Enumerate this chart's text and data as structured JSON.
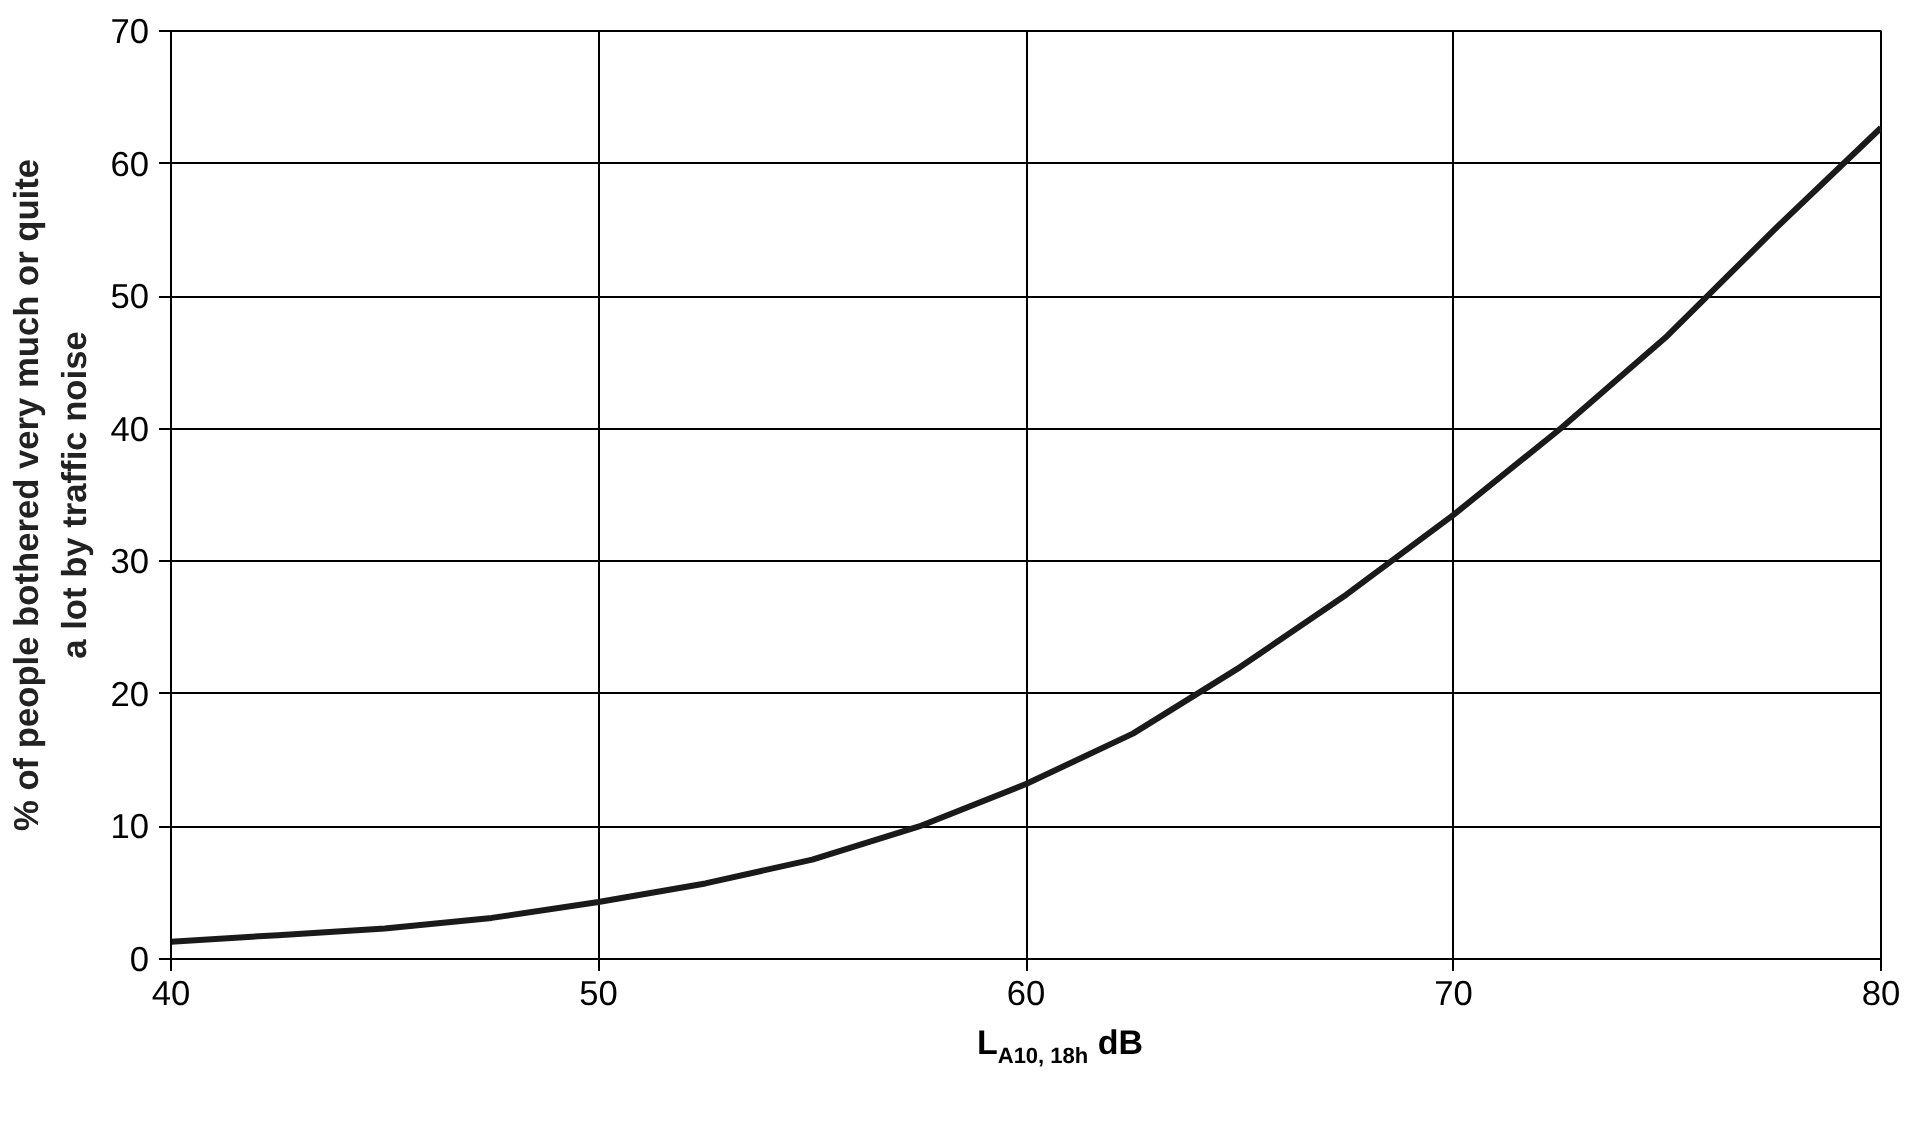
{
  "chart_data": {
    "type": "line",
    "xlabel": "L$_{A10, 18h}$ dB",
    "ylabel": "% of people bothered very much or quite\na lot by traffic noise",
    "x": [
      40,
      42.5,
      45,
      47.5,
      50,
      52.5,
      55,
      57.5,
      60,
      62.5,
      65,
      67.5,
      70,
      72.5,
      75,
      77.5,
      80
    ],
    "series": [
      {
        "color": "#1a1a1a",
        "values": [
          1.3,
          1.8,
          2.3,
          3.1,
          4.3,
          5.7,
          7.5,
          10,
          13.2,
          17,
          22,
          27.5,
          33.5,
          40,
          47,
          55,
          62.7
        ]
      }
    ],
    "xlim": [
      40,
      80
    ],
    "ylim": [
      0,
      70
    ],
    "xticks": [
      40,
      50,
      60,
      70,
      80
    ],
    "yticks": [
      0,
      10,
      20,
      30,
      40,
      50,
      60,
      70
    ],
    "grid": true,
    "marker": "none",
    "line_style": "solid"
  }
}
